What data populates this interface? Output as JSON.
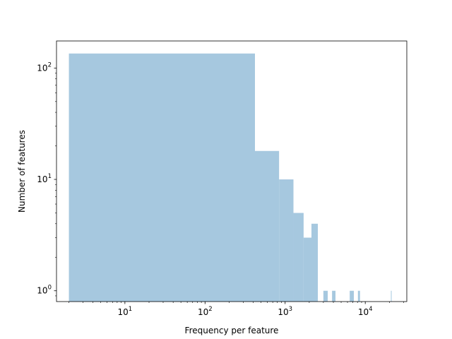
{
  "chart_data": {
    "type": "bar",
    "title": "",
    "xlabel": "Frequency per feature",
    "ylabel": "Number of features",
    "x_scale": "log",
    "y_scale": "log",
    "xlim": [
      1.4,
      33000
    ],
    "ylim": [
      0.8,
      175
    ],
    "x_ticks": [
      {
        "value": 10,
        "base": "10",
        "exp": "1"
      },
      {
        "value": 100,
        "base": "10",
        "exp": "2"
      },
      {
        "value": 1000,
        "base": "10",
        "exp": "3"
      },
      {
        "value": 10000,
        "base": "10",
        "exp": "4"
      }
    ],
    "y_ticks": [
      {
        "value": 1,
        "base": "10",
        "exp": "0"
      },
      {
        "value": 10,
        "base": "10",
        "exp": "1"
      },
      {
        "value": 100,
        "base": "10",
        "exp": "2"
      }
    ],
    "bar_color": "#a6c8df",
    "bins": [
      {
        "x0": 2,
        "x1": 420,
        "count": 135
      },
      {
        "x0": 420,
        "x1": 840,
        "count": 18
      },
      {
        "x0": 840,
        "x1": 1270,
        "count": 10
      },
      {
        "x0": 1270,
        "x1": 1700,
        "count": 5
      },
      {
        "x0": 1700,
        "x1": 2130,
        "count": 3
      },
      {
        "x0": 2130,
        "x1": 2560,
        "count": 4
      },
      {
        "x0": 3000,
        "x1": 3400,
        "count": 1
      },
      {
        "x0": 3850,
        "x1": 4250,
        "count": 1
      },
      {
        "x0": 6400,
        "x1": 7200,
        "count": 1
      },
      {
        "x0": 8100,
        "x1": 8600,
        "count": 1
      },
      {
        "x0": 20900,
        "x1": 21200,
        "count": 1
      }
    ]
  }
}
